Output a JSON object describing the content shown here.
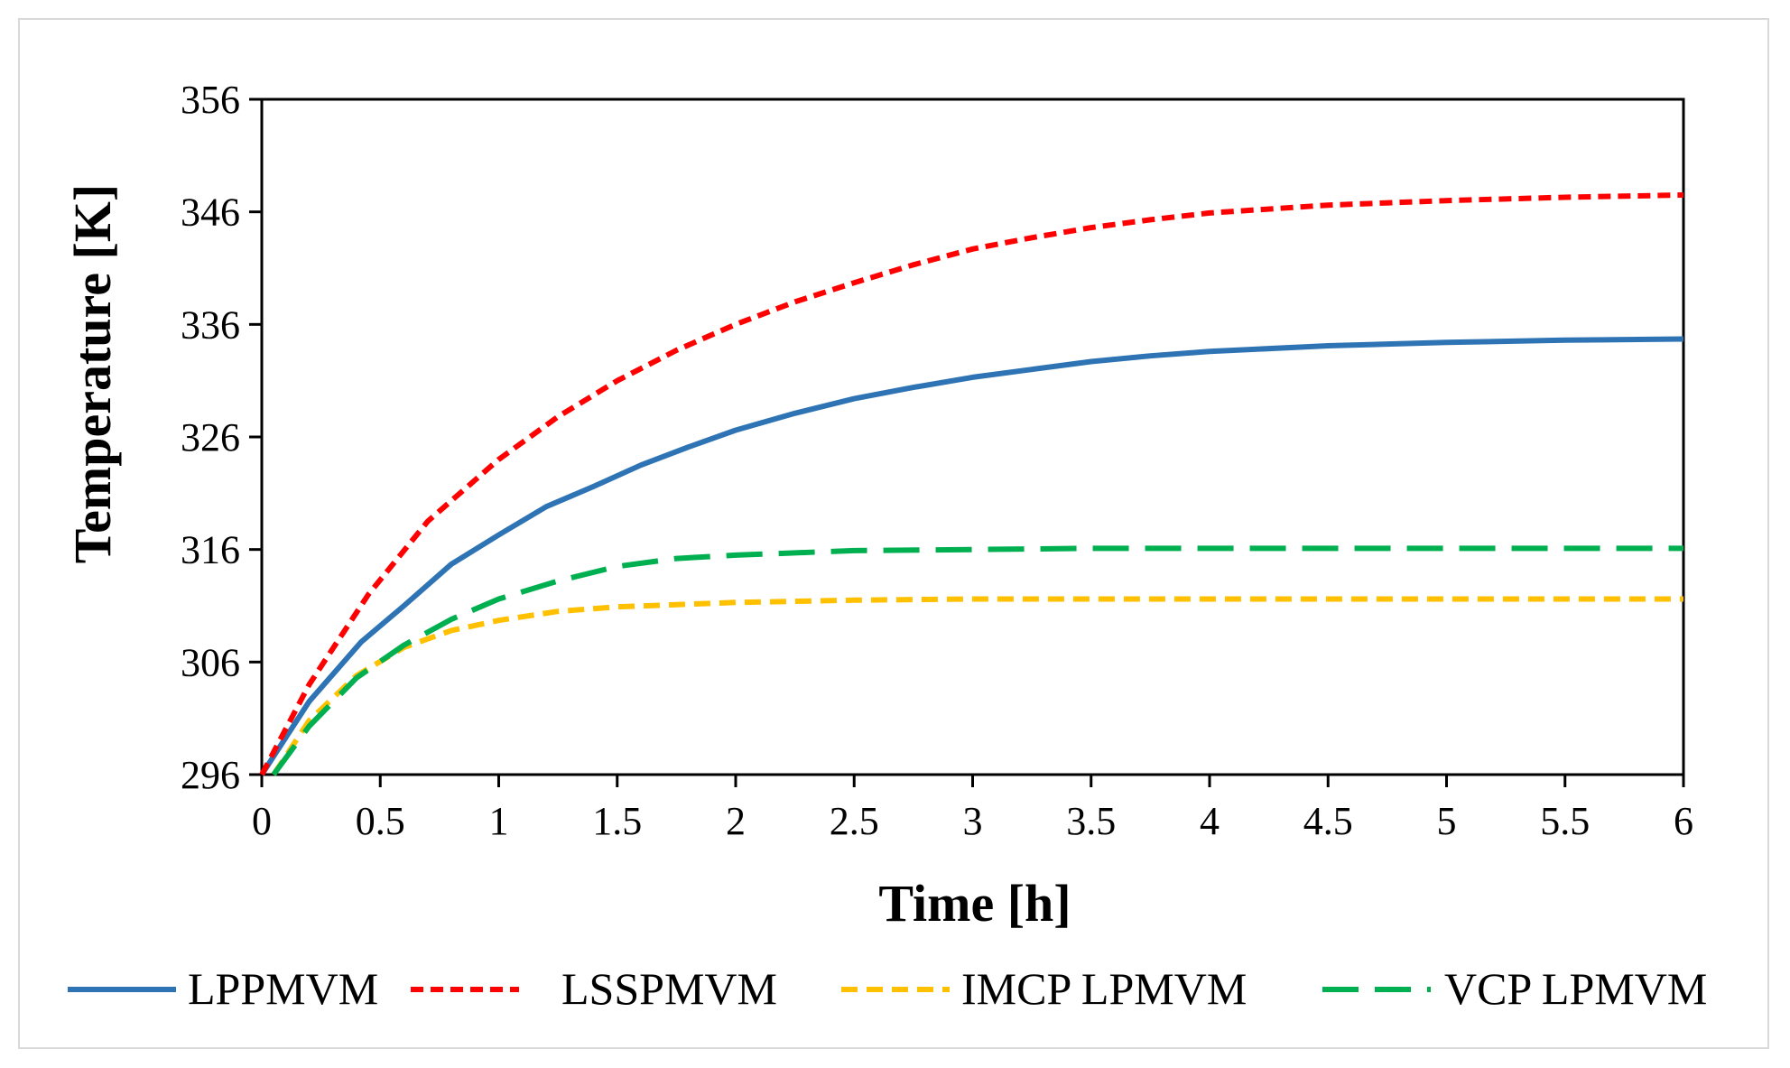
{
  "chart_data": {
    "type": "line",
    "title": "",
    "xlabel": "Time [h]",
    "ylabel": "Temperature [K]",
    "xlim": [
      0,
      6
    ],
    "ylim": [
      296,
      356
    ],
    "xticks": [
      "0",
      "0.5",
      "1",
      "1.5",
      "2",
      "2.5",
      "3",
      "3.5",
      "4",
      "4.5",
      "5",
      "5.5",
      "6"
    ],
    "yticks": [
      "296",
      "306",
      "316",
      "326",
      "336",
      "346",
      "356"
    ],
    "grid": false,
    "legend_position": "bottom",
    "series": [
      {
        "name": "LPPMVM",
        "color": "#2e74b5",
        "style": "solid",
        "x": [
          0,
          0.2,
          0.42,
          0.6,
          0.8,
          1.0,
          1.2,
          1.4,
          1.6,
          1.8,
          2.0,
          2.25,
          2.5,
          2.75,
          3.0,
          3.25,
          3.5,
          3.75,
          4.0,
          4.5,
          5.0,
          5.5,
          6.0
        ],
        "y": [
          296,
          302.5,
          307.8,
          311.0,
          314.7,
          317.3,
          319.8,
          321.6,
          323.5,
          325.1,
          326.6,
          328.1,
          329.4,
          330.4,
          331.3,
          332.0,
          332.7,
          333.2,
          333.6,
          334.1,
          334.4,
          334.6,
          334.7
        ]
      },
      {
        "name": "LSSPMVM",
        "color": "#ff0000",
        "style": "dotted",
        "x": [
          0,
          0.2,
          0.45,
          0.7,
          1.0,
          1.25,
          1.5,
          1.75,
          2.0,
          2.25,
          2.5,
          2.75,
          3.0,
          3.25,
          3.5,
          3.75,
          4.0,
          4.5,
          5.0,
          5.5,
          6.0
        ],
        "y": [
          296,
          304.0,
          312.0,
          318.5,
          324.0,
          327.8,
          331.0,
          333.7,
          336.0,
          338.0,
          339.7,
          341.3,
          342.7,
          343.7,
          344.6,
          345.3,
          345.9,
          346.6,
          347.0,
          347.3,
          347.5
        ]
      },
      {
        "name": "IMCP LPMVM",
        "color": "#ffc000",
        "style": "dashed",
        "x": [
          0.05,
          0.2,
          0.4,
          0.6,
          0.8,
          1.0,
          1.25,
          1.5,
          1.75,
          2.0,
          2.5,
          3.0,
          3.5,
          4.0,
          5.0,
          6.0
        ],
        "y": [
          296,
          300.8,
          304.8,
          307.3,
          308.8,
          309.7,
          310.5,
          310.9,
          311.1,
          311.3,
          311.5,
          311.6,
          311.6,
          311.6,
          311.6,
          311.6
        ]
      },
      {
        "name": "VCP LPMVM",
        "color": "#00b050",
        "style": "longdash",
        "x": [
          0.05,
          0.2,
          0.4,
          0.6,
          0.8,
          1.0,
          1.25,
          1.5,
          1.75,
          2.0,
          2.5,
          3.0,
          3.5,
          4.0,
          5.0,
          6.0
        ],
        "y": [
          296,
          300.3,
          304.6,
          307.5,
          309.8,
          311.6,
          313.2,
          314.5,
          315.2,
          315.5,
          315.9,
          316.0,
          316.1,
          316.1,
          316.1,
          316.1
        ]
      }
    ]
  }
}
